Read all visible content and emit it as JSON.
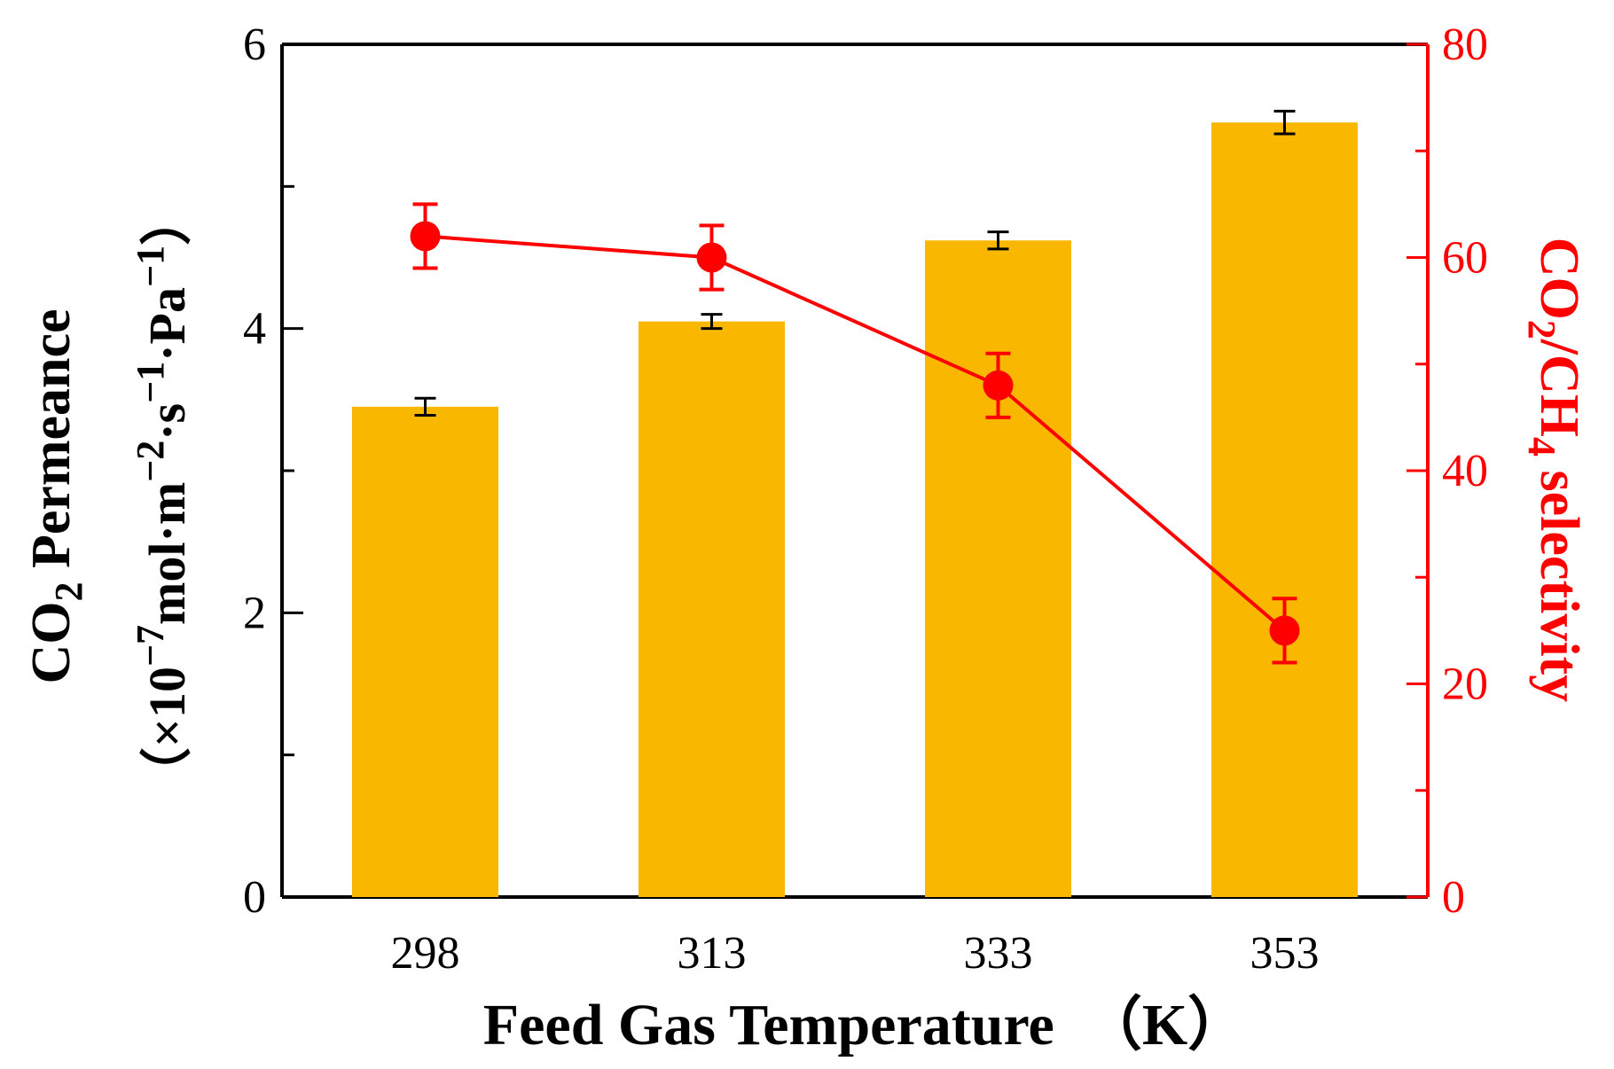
{
  "chart_data": {
    "type": "bar",
    "categories": [
      "298",
      "313",
      "333",
      "353"
    ],
    "xlabel": "Feed Gas Temperature　（K）",
    "ylabel": {
      "line1_main": "CO",
      "line1_sub": "2",
      "line1_rest": " Permeance",
      "line2_open": "（×10",
      "exp_neg7": "−7",
      "unit_mol_m": "mol·m",
      "exp_neg2": "−2",
      "unit_s": "·s",
      "exp_neg1a": "−1",
      "unit_pa": "·Pa",
      "exp_neg1b": "−1",
      "line2_close": "）"
    },
    "y2label": {
      "co": "CO",
      "sub2": "2",
      "mid": "/CH",
      "sub4": "4",
      "rest": " selectivity"
    },
    "ylim": [
      0,
      6
    ],
    "yticks": [
      "0",
      "2",
      "4",
      "6"
    ],
    "y2lim": [
      0,
      80
    ],
    "y2ticks": [
      "0",
      "20",
      "40",
      "60",
      "80"
    ],
    "series": [
      {
        "name": "CO2 Permeance",
        "kind": "bar",
        "axis": "left",
        "values": [
          3.45,
          4.05,
          4.62,
          5.45
        ],
        "errors": [
          0.06,
          0.05,
          0.06,
          0.08
        ]
      },
      {
        "name": "CO2/CH4 selectivity",
        "kind": "line",
        "axis": "right",
        "values": [
          62,
          60,
          48,
          25
        ],
        "errors": [
          3,
          3,
          3,
          3
        ]
      }
    ],
    "colors": {
      "bar": "#F9B700",
      "line": "#FF0000",
      "axis": "#000000"
    }
  }
}
